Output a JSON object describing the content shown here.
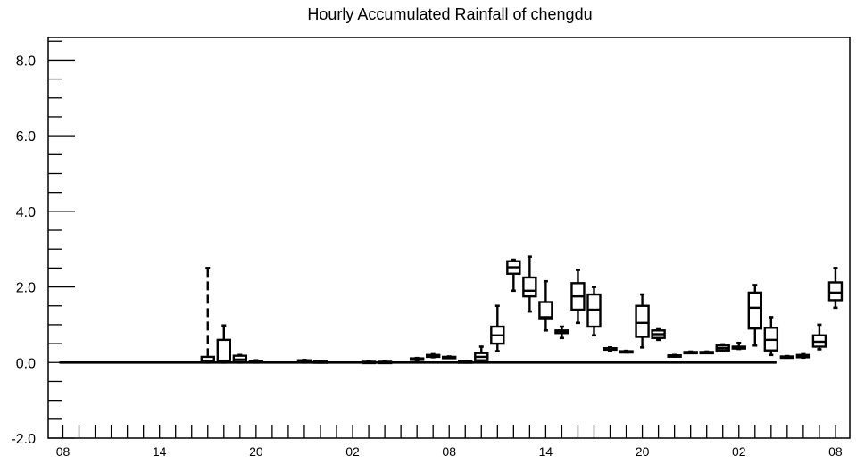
{
  "chart_data": {
    "type": "box",
    "title": "Hourly Accumulated Rainfall of chengdu",
    "xlabel": "",
    "ylabel": "",
    "ylim": [
      -2.0,
      8.6
    ],
    "yticks_major": [
      -2.0,
      0.0,
      2.0,
      4.0,
      6.0,
      8.0
    ],
    "ytick_labels": [
      "-2.0",
      "0.0",
      "2.0",
      "4.0",
      "6.0",
      "8.0"
    ],
    "y_minor_step": 0.5,
    "x_hour_start": 8,
    "x_hour_count": 49,
    "xtick_labels": [
      "08",
      "14",
      "20",
      "02",
      "08",
      "14",
      "20",
      "02",
      "08"
    ],
    "grid": false,
    "legend": "none",
    "boxes": [
      {
        "hour": 17,
        "whisker_low": 0.0,
        "q1": 0.0,
        "median": 0.05,
        "q3": 0.15,
        "whisker_high": 2.5,
        "dashed": true
      },
      {
        "hour": 18,
        "whisker_low": 0.0,
        "q1": 0.0,
        "median": 0.05,
        "q3": 0.6,
        "whisker_high": 0.98
      },
      {
        "hour": 19,
        "whisker_low": 0.0,
        "q1": 0.02,
        "median": 0.08,
        "q3": 0.18,
        "whisker_high": 0.2
      },
      {
        "hour": 20,
        "whisker_low": 0.0,
        "q1": 0.0,
        "median": 0.02,
        "q3": 0.04,
        "whisker_high": 0.06
      },
      {
        "hour": 23,
        "whisker_low": 0.0,
        "q1": 0.02,
        "median": 0.04,
        "q3": 0.06,
        "whisker_high": 0.07
      },
      {
        "hour": 24,
        "whisker_low": 0.0,
        "q1": 0.0,
        "median": 0.02,
        "q3": 0.03,
        "whisker_high": 0.04
      },
      {
        "hour": 27,
        "whisker_low": 0.0,
        "q1": 0.0,
        "median": 0.01,
        "q3": 0.02,
        "whisker_high": 0.03
      },
      {
        "hour": 28,
        "whisker_low": 0.0,
        "q1": 0.0,
        "median": 0.01,
        "q3": 0.02,
        "whisker_high": 0.03
      },
      {
        "hour": 30,
        "whisker_low": 0.06,
        "q1": 0.07,
        "median": 0.09,
        "q3": 0.11,
        "whisker_high": 0.12
      },
      {
        "hour": 31,
        "whisker_low": 0.14,
        "q1": 0.15,
        "median": 0.17,
        "q3": 0.2,
        "whisker_high": 0.22
      },
      {
        "hour": 32,
        "whisker_low": 0.12,
        "q1": 0.13,
        "median": 0.14,
        "q3": 0.15,
        "whisker_high": 0.16
      },
      {
        "hour": 33,
        "whisker_low": 0.01,
        "q1": 0.01,
        "median": 0.02,
        "q3": 0.03,
        "whisker_high": 0.03
      },
      {
        "hour": 34,
        "whisker_low": 0.04,
        "q1": 0.06,
        "median": 0.15,
        "q3": 0.25,
        "whisker_high": 0.42
      },
      {
        "hour": 35,
        "whisker_low": 0.3,
        "q1": 0.5,
        "median": 0.72,
        "q3": 0.95,
        "whisker_high": 1.5
      },
      {
        "hour": 36,
        "whisker_low": 1.9,
        "q1": 2.35,
        "median": 2.52,
        "q3": 2.68,
        "whisker_high": 2.72
      },
      {
        "hour": 37,
        "whisker_low": 1.35,
        "q1": 1.75,
        "median": 1.9,
        "q3": 2.25,
        "whisker_high": 2.8
      },
      {
        "hour": 38,
        "whisker_low": 0.85,
        "q1": 1.15,
        "median": 1.2,
        "q3": 1.6,
        "whisker_high": 2.15
      },
      {
        "hour": 39,
        "whisker_low": 0.65,
        "q1": 0.78,
        "median": 0.82,
        "q3": 0.85,
        "whisker_high": 0.95
      },
      {
        "hour": 40,
        "whisker_low": 1.05,
        "q1": 1.4,
        "median": 1.75,
        "q3": 2.1,
        "whisker_high": 2.45
      },
      {
        "hour": 41,
        "whisker_low": 0.72,
        "q1": 0.95,
        "median": 1.4,
        "q3": 1.8,
        "whisker_high": 2.0
      },
      {
        "hour": 42,
        "whisker_low": 0.32,
        "q1": 0.34,
        "median": 0.36,
        "q3": 0.38,
        "whisker_high": 0.4
      },
      {
        "hour": 43,
        "whisker_low": 0.27,
        "q1": 0.28,
        "median": 0.29,
        "q3": 0.3,
        "whisker_high": 0.31
      },
      {
        "hour": 44,
        "whisker_low": 0.4,
        "q1": 0.68,
        "median": 1.05,
        "q3": 1.5,
        "whisker_high": 1.8
      },
      {
        "hour": 45,
        "whisker_low": 0.6,
        "q1": 0.65,
        "median": 0.75,
        "q3": 0.85,
        "whisker_high": 0.88
      },
      {
        "hour": 46,
        "whisker_low": 0.16,
        "q1": 0.17,
        "median": 0.18,
        "q3": 0.19,
        "whisker_high": 0.2
      },
      {
        "hour": 47,
        "whisker_low": 0.25,
        "q1": 0.26,
        "median": 0.27,
        "q3": 0.28,
        "whisker_high": 0.29
      },
      {
        "hour": 48,
        "whisker_low": 0.25,
        "q1": 0.26,
        "median": 0.27,
        "q3": 0.28,
        "whisker_high": 0.29
      },
      {
        "hour": 49,
        "whisker_low": 0.3,
        "q1": 0.32,
        "median": 0.38,
        "q3": 0.45,
        "whisker_high": 0.48
      },
      {
        "hour": 50,
        "whisker_low": 0.36,
        "q1": 0.37,
        "median": 0.4,
        "q3": 0.42,
        "whisker_high": 0.52
      },
      {
        "hour": 51,
        "whisker_low": 0.45,
        "q1": 0.9,
        "median": 1.45,
        "q3": 1.85,
        "whisker_high": 2.05
      },
      {
        "hour": 52,
        "whisker_low": 0.2,
        "q1": 0.32,
        "median": 0.6,
        "q3": 0.92,
        "whisker_high": 1.2
      },
      {
        "hour": 53,
        "whisker_low": 0.13,
        "q1": 0.14,
        "median": 0.15,
        "q3": 0.16,
        "whisker_high": 0.17
      },
      {
        "hour": 54,
        "whisker_low": 0.13,
        "q1": 0.14,
        "median": 0.17,
        "q3": 0.2,
        "whisker_high": 0.22
      },
      {
        "hour": 55,
        "whisker_low": 0.35,
        "q1": 0.42,
        "median": 0.55,
        "q3": 0.72,
        "whisker_high": 1.0
      },
      {
        "hour": 56,
        "whisker_low": 1.45,
        "q1": 1.65,
        "median": 1.85,
        "q3": 2.12,
        "whisker_high": 2.5
      }
    ],
    "zero_line": {
      "from_hour": 8,
      "to_hour": 52,
      "value": 0.0
    }
  }
}
